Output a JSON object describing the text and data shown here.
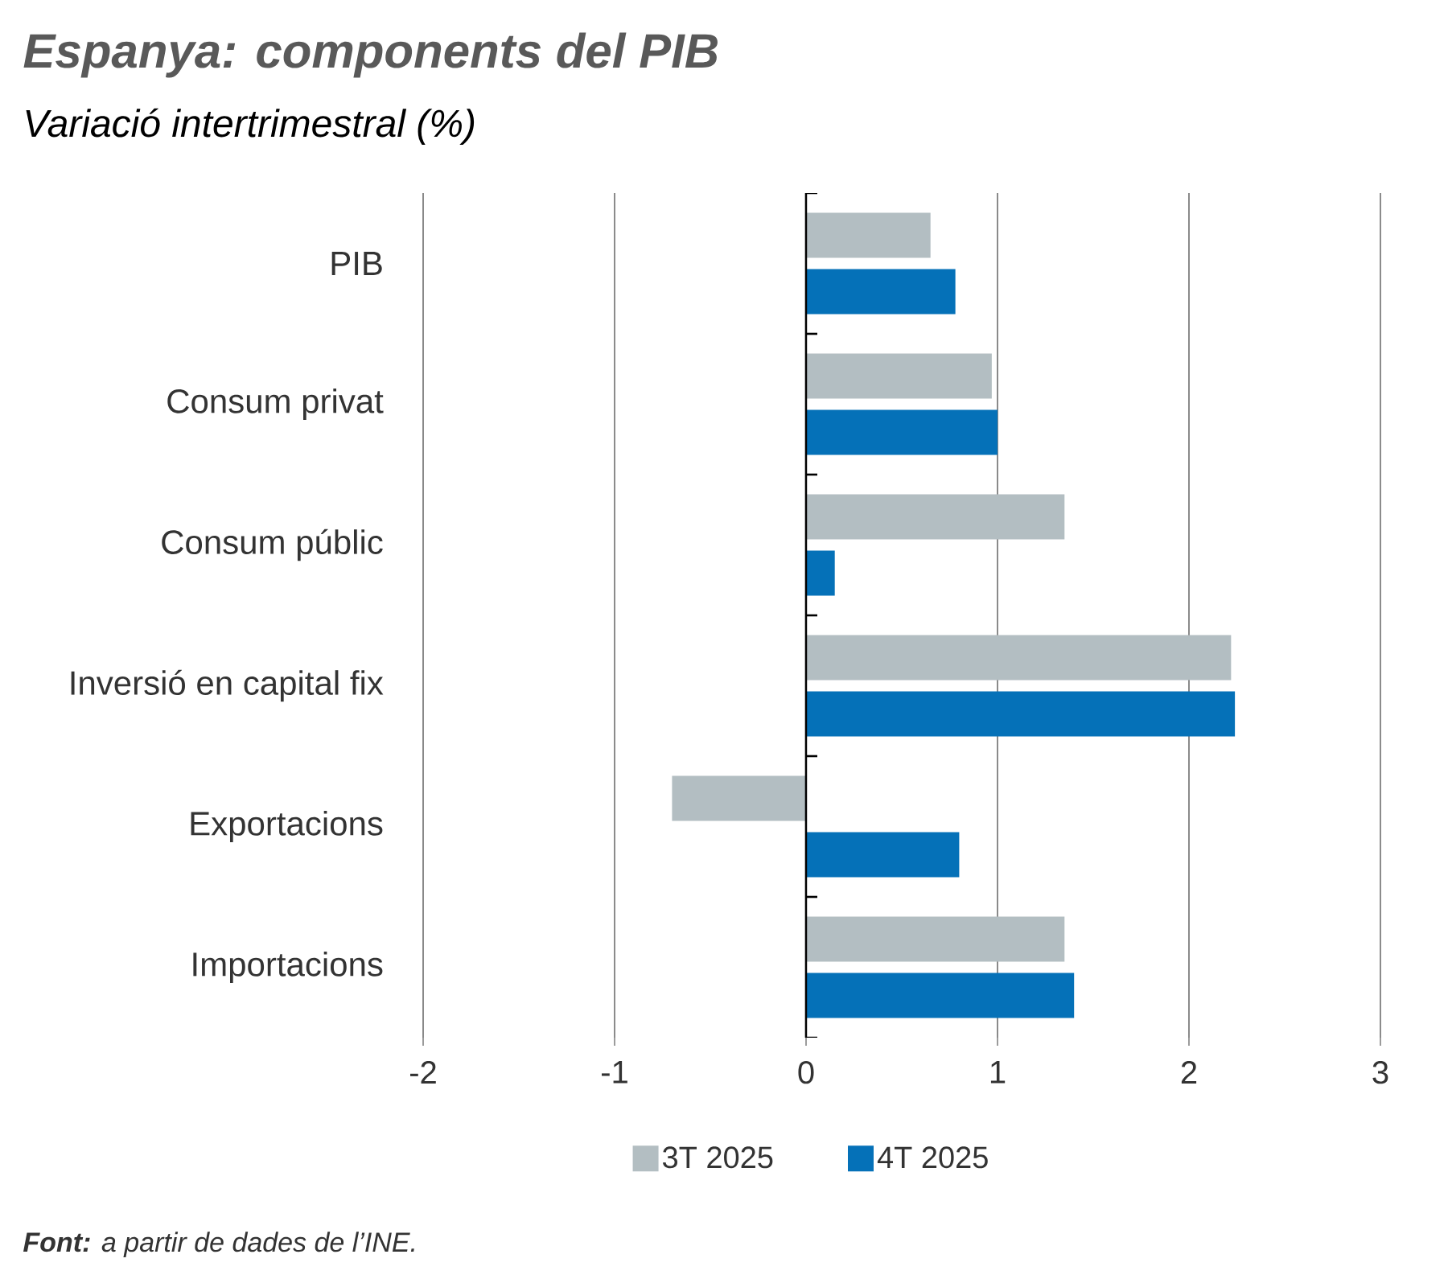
{
  "chart_data": {
    "type": "bar",
    "orientation": "horizontal",
    "title": "Espanya: components del PIB",
    "subtitle": "Variació intertrimestral (%)",
    "categories": [
      "PIB",
      "Consum privat",
      "Consum públic",
      "Inversió en capital fix",
      "Exportacions",
      "Importacions"
    ],
    "series": [
      {
        "name": "3T 2025",
        "color": "#b3bec2",
        "values": [
          0.65,
          0.97,
          1.35,
          2.22,
          -0.7,
          1.35
        ]
      },
      {
        "name": "4T 2025",
        "color": "#0571b8",
        "values": [
          0.78,
          1.0,
          0.15,
          2.24,
          0.8,
          1.4
        ]
      }
    ],
    "xlim": [
      -2,
      3
    ],
    "xticks": [
      -2,
      -1,
      0,
      1,
      2,
      3
    ],
    "grid": "x",
    "legend": "bottom",
    "annotations": [
      "**Font:** a partir de dades de l’INE."
    ]
  }
}
